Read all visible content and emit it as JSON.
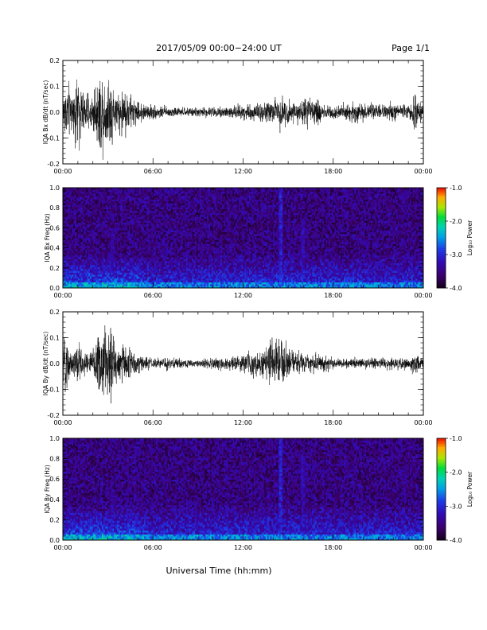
{
  "header": {
    "title": "2017/05/09   00:00−24:00 UT",
    "page": "Page 1/1"
  },
  "x_axis_title": "Universal Time (hh:mm)",
  "chart_data": [
    {
      "type": "line",
      "ylabel": "IQA Bx dB/dt (nT/sec)",
      "xlim": [
        0,
        24
      ],
      "ylim": [
        -0.2,
        0.2
      ],
      "xticks": [
        "00:00",
        "06:00",
        "12:00",
        "18:00",
        "00:00"
      ],
      "yticks": [
        "-0.2",
        "-0.1",
        "0.0",
        "0.1",
        "0.2"
      ],
      "envelope": {
        "t": [
          0,
          0.2,
          0.5,
          1.0,
          1.5,
          2.0,
          2.4,
          2.8,
          3.2,
          3.6,
          4.0,
          4.4,
          5.0,
          6.0,
          7.0,
          8.0,
          9.0,
          10.0,
          11.0,
          12.0,
          13.0,
          14.0,
          14.5,
          15.0,
          15.5,
          16.0,
          16.5,
          17.0,
          17.5,
          18.0,
          19.0,
          19.5,
          20.0,
          21.0,
          22.0,
          23.0,
          23.5,
          24.0
        ],
        "amp": [
          0.08,
          0.21,
          0.12,
          0.21,
          0.09,
          0.12,
          0.21,
          0.21,
          0.21,
          0.09,
          0.15,
          0.11,
          0.06,
          0.04,
          0.03,
          0.025,
          0.025,
          0.03,
          0.04,
          0.045,
          0.05,
          0.07,
          0.1,
          0.07,
          0.05,
          0.09,
          0.06,
          0.08,
          0.05,
          0.04,
          0.05,
          0.07,
          0.05,
          0.04,
          0.05,
          0.04,
          0.1,
          0.03
        ]
      }
    },
    {
      "type": "heatmap",
      "ylabel": "IQA Bx Freq (Hz)",
      "xlim": [
        0,
        24
      ],
      "ylim": [
        0.0,
        1.0
      ],
      "xticks": [
        "00:00",
        "06:00",
        "12:00",
        "18:00",
        "00:00"
      ],
      "yticks": [
        "0.0",
        "0.2",
        "0.4",
        "0.6",
        "0.8",
        "1.0"
      ],
      "colorbar": {
        "label": "Log₁₀ Power",
        "min": -4.0,
        "max": -1.0,
        "ticks": [
          "-1.0",
          "-2.0",
          "-3.0",
          "-4.0"
        ]
      },
      "features": [
        {
          "t": 2.7,
          "fmax": 0.08,
          "level": -1.5
        },
        {
          "t": 3.3,
          "fmax": 0.6,
          "level": -2.8
        },
        {
          "t": 4.6,
          "fmax": 0.3,
          "level": -2.6
        },
        {
          "t": 14.5,
          "fmax": 1.0,
          "level": -2.2
        },
        {
          "t": 16.0,
          "fmax": 0.7,
          "level": -2.6
        },
        {
          "t": 23.7,
          "fmax": 0.4,
          "level": -3.0
        }
      ]
    },
    {
      "type": "line",
      "ylabel": "IQA By dB/dt (nT/sec)",
      "xlim": [
        0,
        24
      ],
      "ylim": [
        -0.2,
        0.2
      ],
      "xticks": [
        "00:00",
        "06:00",
        "12:00",
        "18:00",
        "00:00"
      ],
      "yticks": [
        "-0.2",
        "-0.1",
        "0.0",
        "0.1",
        "0.2"
      ],
      "envelope": {
        "t": [
          0,
          0.2,
          0.5,
          1.0,
          1.5,
          2.0,
          2.4,
          2.8,
          3.2,
          3.6,
          4.0,
          4.4,
          5.0,
          6.0,
          7.0,
          8.0,
          9.0,
          10.0,
          11.0,
          12.0,
          13.0,
          13.5,
          14.0,
          14.5,
          15.0,
          15.5,
          16.0,
          16.5,
          17.0,
          18.0,
          19.0,
          20.0,
          21.0,
          22.0,
          23.0,
          23.5,
          24.0
        ],
        "amp": [
          0.1,
          0.15,
          0.1,
          0.12,
          0.07,
          0.08,
          0.21,
          0.21,
          0.21,
          0.1,
          0.12,
          0.1,
          0.05,
          0.03,
          0.03,
          0.025,
          0.025,
          0.03,
          0.04,
          0.05,
          0.07,
          0.1,
          0.12,
          0.15,
          0.08,
          0.06,
          0.07,
          0.06,
          0.05,
          0.035,
          0.03,
          0.03,
          0.03,
          0.035,
          0.03,
          0.07,
          0.025
        ]
      }
    },
    {
      "type": "heatmap",
      "ylabel": "IQA By Freq (Hz)",
      "xlim": [
        0,
        24
      ],
      "ylim": [
        0.0,
        1.0
      ],
      "xticks": [
        "00:00",
        "06:00",
        "12:00",
        "18:00",
        "00:00"
      ],
      "yticks": [
        "0.0",
        "0.2",
        "0.4",
        "0.6",
        "0.8",
        "1.0"
      ],
      "colorbar": {
        "label": "Log₁₀ Power",
        "min": -4.0,
        "max": -1.0,
        "ticks": [
          "-1.0",
          "-2.0",
          "-3.0",
          "-4.0"
        ]
      },
      "features": [
        {
          "t": 2.7,
          "fmax": 0.08,
          "level": -1.5
        },
        {
          "t": 3.3,
          "fmax": 0.5,
          "level": -2.8
        },
        {
          "t": 4.6,
          "fmax": 0.3,
          "level": -2.6
        },
        {
          "t": 14.5,
          "fmax": 1.0,
          "level": -2.2
        },
        {
          "t": 16.0,
          "fmax": 0.8,
          "level": -2.6
        },
        {
          "t": 23.7,
          "fmax": 0.4,
          "level": -3.0
        }
      ]
    }
  ]
}
